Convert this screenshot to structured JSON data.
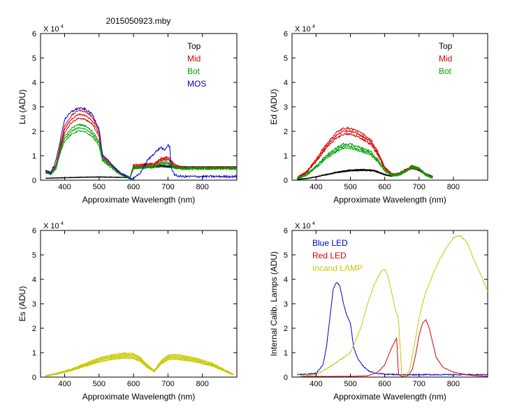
{
  "figure_title": "2015050923.mby",
  "colors": {
    "top": "#000000",
    "mid": "#d40000",
    "bot": "#00a000",
    "mos": "#0000d0",
    "yellow": "#c8c800"
  },
  "chart_data": [
    {
      "id": "lu",
      "type": "line",
      "ylabel": "Lu (ADU)",
      "xlabel": "Approximate Wavelength (nm)",
      "multiplier": "X 10",
      "exponent": "4",
      "xlim": [
        330,
        900
      ],
      "ylim": [
        0,
        60000
      ],
      "xticks": [
        400,
        500,
        600,
        700,
        800
      ],
      "xtick_labels": [
        "400",
        "500",
        "600",
        "700",
        "800"
      ],
      "yticks": [
        0,
        10000,
        20000,
        30000,
        40000,
        50000,
        60000
      ],
      "ytick_labels": [
        "0",
        "1",
        "2",
        "3",
        "4",
        "5",
        "6"
      ],
      "legend": [
        {
          "label": "Top",
          "color": "#000000"
        },
        {
          "label": "Mid",
          "color": "#d40000"
        },
        {
          "label": "Bot",
          "color": "#00a000"
        },
        {
          "label": "MOS",
          "color": "#0000d0"
        }
      ],
      "series": [
        {
          "name": "Top",
          "color": "#000000",
          "noise": 150,
          "copies": 3,
          "x": [
            345,
            400,
            450,
            500,
            550,
            590,
            600,
            620,
            640,
            660,
            680,
            700,
            720,
            740,
            760,
            800,
            850,
            900
          ],
          "y": [
            800,
            1000,
            1200,
            1300,
            1200,
            1100,
            5000,
            5200,
            5400,
            5600,
            5800,
            5600,
            5400,
            5300,
            5200,
            5200,
            5200,
            5200
          ]
        },
        {
          "name": "Mid",
          "color": "#d40000",
          "noise": 600,
          "copies": 3,
          "x": [
            345,
            360,
            375,
            390,
            400,
            420,
            440,
            460,
            480,
            500,
            510,
            530,
            560,
            590,
            600,
            620,
            660,
            680,
            700,
            720,
            740,
            800,
            900
          ],
          "y": [
            3500,
            3000,
            6000,
            15000,
            21000,
            25000,
            27000,
            26500,
            24500,
            19000,
            9500,
            7000,
            3000,
            1000,
            6000,
            6000,
            6500,
            8500,
            9000,
            6000,
            5000,
            5000,
            5000
          ]
        },
        {
          "name": "Bot",
          "color": "#00a000",
          "noise": 600,
          "copies": 3,
          "x": [
            345,
            360,
            375,
            390,
            400,
            420,
            440,
            460,
            480,
            500,
            510,
            530,
            560,
            590,
            600,
            620,
            660,
            680,
            700,
            720,
            740,
            800,
            900
          ],
          "y": [
            3000,
            2500,
            5000,
            13000,
            17000,
            20000,
            21500,
            21000,
            19000,
            15000,
            8500,
            6000,
            2500,
            1000,
            5000,
            5200,
            5500,
            7000,
            7000,
            5200,
            4800,
            4800,
            4800
          ]
        },
        {
          "name": "MOS",
          "color": "#0000d0",
          "noise": 900,
          "copies": 1,
          "x": [
            345,
            360,
            375,
            390,
            400,
            420,
            440,
            460,
            480,
            500,
            510,
            530,
            560,
            590,
            600,
            620,
            640,
            660,
            680,
            690,
            700,
            705,
            710,
            720,
            740,
            800,
            900
          ],
          "y": [
            4000,
            3000,
            8000,
            18000,
            25000,
            28000,
            29500,
            29000,
            27000,
            21000,
            10000,
            7500,
            3000,
            800,
            500,
            3000,
            8000,
            11000,
            13500,
            12000,
            14500,
            13500,
            5000,
            2000,
            1500,
            1500,
            1500
          ]
        }
      ]
    },
    {
      "id": "ed",
      "type": "line",
      "ylabel": "Ed  (ADU)",
      "xlabel": "Approximate Wavelength (nm)",
      "multiplier": "X 10",
      "exponent": "4",
      "xlim": [
        330,
        900
      ],
      "ylim": [
        0,
        60000
      ],
      "xticks": [
        400,
        500,
        600,
        700,
        800
      ],
      "xtick_labels": [
        "400",
        "500",
        "600",
        "700",
        "800"
      ],
      "yticks": [
        0,
        10000,
        20000,
        30000,
        40000,
        50000,
        60000
      ],
      "ytick_labels": [
        "0",
        "1",
        "2",
        "3",
        "4",
        "5",
        "6"
      ],
      "legend": [
        {
          "label": "Top",
          "color": "#000000"
        },
        {
          "label": "Mid",
          "color": "#d40000"
        },
        {
          "label": "Bot",
          "color": "#00a000"
        }
      ],
      "series": [
        {
          "name": "Top",
          "color": "#000000",
          "noise": 250,
          "copies": 3,
          "x": [
            345,
            380,
            420,
            460,
            500,
            540,
            570,
            600,
            620,
            640,
            660,
            680,
            700,
            720,
            740
          ],
          "y": [
            300,
            800,
            2000,
            3200,
            4000,
            4200,
            3900,
            2300,
            1600,
            2500,
            4000,
            5000,
            4200,
            2500,
            1500
          ]
        },
        {
          "name": "Mid",
          "color": "#d40000",
          "noise": 800,
          "copies": 3,
          "x": [
            345,
            370,
            400,
            430,
            460,
            480,
            500,
            520,
            540,
            560,
            580,
            600,
            620,
            640,
            660,
            680,
            700,
            720,
            740
          ],
          "y": [
            1000,
            3000,
            8000,
            14000,
            18500,
            20000,
            20000,
            19000,
            17500,
            15500,
            11000,
            5000,
            2500,
            2500,
            4000,
            5500,
            4500,
            2200,
            1200
          ]
        },
        {
          "name": "Bot",
          "color": "#00a000",
          "noise": 800,
          "copies": 3,
          "x": [
            345,
            370,
            400,
            430,
            460,
            480,
            500,
            520,
            540,
            560,
            580,
            600,
            620,
            640,
            660,
            680,
            700,
            720,
            740
          ],
          "y": [
            800,
            2000,
            5500,
            9500,
            12500,
            14000,
            14000,
            13000,
            12000,
            11000,
            8000,
            4000,
            2000,
            2200,
            3500,
            5500,
            4800,
            2200,
            1000
          ]
        }
      ]
    },
    {
      "id": "es",
      "type": "line",
      "ylabel": "Es  (ADU)",
      "xlabel": "Approximate Wavelength (nm)",
      "multiplier": "X 10",
      "exponent": "4",
      "xlim": [
        330,
        900
      ],
      "ylim": [
        0,
        60000
      ],
      "xticks": [
        400,
        500,
        600,
        700,
        800
      ],
      "xtick_labels": [
        "400",
        "500",
        "600",
        "700",
        "800"
      ],
      "yticks": [
        0,
        10000,
        20000,
        30000,
        40000,
        50000,
        60000
      ],
      "ytick_labels": [
        "0",
        "1",
        "2",
        "3",
        "4",
        "5",
        "6"
      ],
      "legend": [],
      "series": [
        {
          "name": "Es",
          "color": "#c8c800",
          "noise": 400,
          "copies": 6,
          "spread": 0.12,
          "x": [
            345,
            380,
            420,
            460,
            500,
            540,
            570,
            600,
            620,
            640,
            660,
            680,
            700,
            720,
            740,
            760,
            780,
            800,
            830,
            860,
            890
          ],
          "y": [
            500,
            1500,
            3000,
            5000,
            7000,
            8200,
            8800,
            8600,
            7200,
            4500,
            2500,
            6000,
            8000,
            8300,
            8000,
            7500,
            7000,
            6200,
            5000,
            3000,
            1000
          ]
        }
      ]
    },
    {
      "id": "lamps",
      "type": "line",
      "ylabel": "Internal Calib. Lamps (ADU)",
      "xlabel": "Approximate Wavelength (nm)",
      "multiplier": "X 10",
      "exponent": "4",
      "xlim": [
        330,
        900
      ],
      "ylim": [
        0,
        60000
      ],
      "xticks": [
        400,
        500,
        600,
        700,
        800
      ],
      "xtick_labels": [
        "400",
        "500",
        "600",
        "700",
        "800"
      ],
      "yticks": [
        0,
        10000,
        20000,
        30000,
        40000,
        50000,
        60000
      ],
      "ytick_labels": [
        "0",
        "1",
        "2",
        "3",
        "4",
        "5",
        "6"
      ],
      "legend": [
        {
          "label": "Blue LED",
          "color": "#0000d0"
        },
        {
          "label": "Red LED",
          "color": "#d40000"
        },
        {
          "label": "Incand LAMP",
          "color": "#c8c800"
        }
      ],
      "series": [
        {
          "name": "Blue LED",
          "color": "#0000d0",
          "noise": 450,
          "copies": 1,
          "x": [
            345,
            400,
            420,
            430,
            440,
            450,
            460,
            470,
            480,
            490,
            500,
            510,
            520,
            540,
            560,
            580,
            600,
            650,
            700,
            750,
            800,
            900
          ],
          "y": [
            1000,
            1500,
            5000,
            12000,
            24000,
            36000,
            39000,
            37000,
            30000,
            25000,
            22000,
            12000,
            8000,
            4000,
            2000,
            1500,
            1200,
            1000,
            1000,
            1000,
            1000,
            1000
          ]
        },
        {
          "name": "Red LED",
          "color": "#d40000",
          "noise": 150,
          "copies": 1,
          "x": [
            345,
            500,
            550,
            580,
            600,
            620,
            635,
            640,
            650,
            660,
            670,
            680,
            690,
            700,
            710,
            720,
            730,
            740,
            750,
            770,
            800,
            850,
            900
          ],
          "y": [
            300,
            300,
            500,
            2000,
            5000,
            12000,
            16000,
            1000,
            300,
            400,
            800,
            3000,
            9000,
            17000,
            22000,
            23500,
            20000,
            14000,
            8000,
            4000,
            2000,
            700,
            300
          ]
        },
        {
          "name": "Incand LAMP",
          "color": "#c8c800",
          "noise": 450,
          "copies": 1,
          "x": [
            345,
            400,
            450,
            500,
            530,
            550,
            570,
            590,
            600,
            610,
            620,
            630,
            640,
            650,
            660,
            670,
            680,
            690,
            700,
            710,
            720,
            730,
            740,
            760,
            780,
            800,
            820,
            840,
            860,
            880,
            900
          ],
          "y": [
            300,
            1000,
            5000,
            10000,
            20000,
            30000,
            38000,
            43500,
            44000,
            41000,
            35000,
            28000,
            24000,
            600,
            300,
            2000,
            8000,
            16000,
            24000,
            30000,
            35000,
            38000,
            42000,
            48000,
            53000,
            57000,
            58000,
            55000,
            48000,
            42000,
            35000
          ]
        }
      ]
    }
  ]
}
